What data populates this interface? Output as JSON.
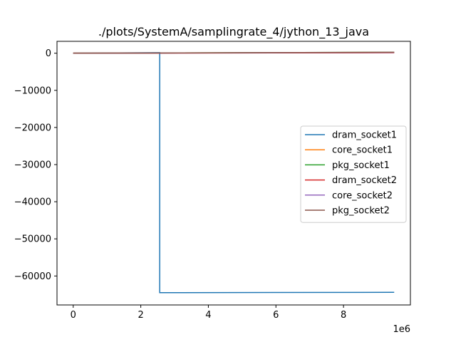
{
  "chart_data": {
    "type": "line",
    "title": "./plots/SystemA/samplingrate_4/jython_13_java",
    "xlabel": "",
    "ylabel": "",
    "x_offset_label": "1e6",
    "xlim": [
      -0.48,
      9.98
    ],
    "ylim": [
      -67800,
      3200
    ],
    "x_ticks": [
      0,
      2,
      4,
      6,
      8
    ],
    "x_tick_labels": [
      "0",
      "2",
      "4",
      "6",
      "8"
    ],
    "y_ticks": [
      0,
      -10000,
      -20000,
      -30000,
      -40000,
      -50000,
      -60000
    ],
    "y_tick_labels": [
      "0",
      "−10000",
      "−20000",
      "−30000",
      "−40000",
      "−50000",
      "−60000"
    ],
    "grid": false,
    "legend_position": "center-right",
    "series": [
      {
        "name": "dram_socket1",
        "color": "#1f77b4",
        "x": [
          0,
          2.56,
          2.56,
          9.5
        ],
        "y": [
          0,
          150,
          -64500,
          -64400
        ]
      },
      {
        "name": "core_socket1",
        "color": "#ff7f0e",
        "x": [
          0,
          9.5
        ],
        "y": [
          0,
          220
        ]
      },
      {
        "name": "pkg_socket1",
        "color": "#2ca02c",
        "x": [
          0,
          9.5
        ],
        "y": [
          0,
          260
        ]
      },
      {
        "name": "dram_socket2",
        "color": "#d62728",
        "x": [
          0,
          9.5
        ],
        "y": [
          0,
          120
        ]
      },
      {
        "name": "core_socket2",
        "color": "#9467bd",
        "x": [
          0,
          9.5
        ],
        "y": [
          0,
          200
        ]
      },
      {
        "name": "pkg_socket2",
        "color": "#8c564b",
        "x": [
          0,
          9.5
        ],
        "y": [
          0,
          240
        ]
      }
    ]
  }
}
